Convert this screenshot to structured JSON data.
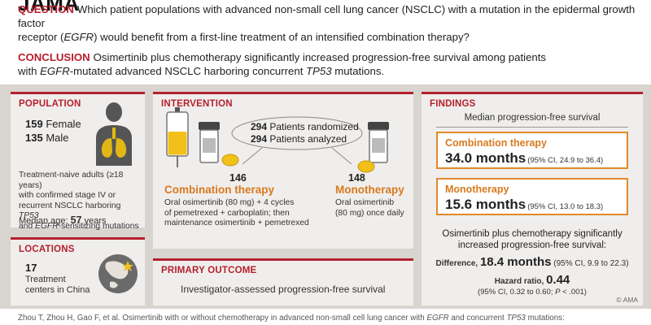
{
  "brand": {
    "logo": "JAMA"
  },
  "question": {
    "tag": "QUESTION",
    "text_1": "Which patient populations with advanced non-small cell lung cancer (NSCLC) with a mutation in the epidermal growth factor",
    "text_2a": "receptor (",
    "text_2b": "EGFR",
    "text_2c": ") would benefit from a first-line treatment of an intensified combination therapy?"
  },
  "conclusion": {
    "tag": "CONCLUSION",
    "text_1": "Osimertinib plus chemotherapy significantly increased progression-free survival among patients",
    "text_2a": "with ",
    "text_2b": "EGFR",
    "text_2c": "-mutated advanced NSCLC harboring concurrent ",
    "text_2d": "TP53",
    "text_2e": " mutations."
  },
  "population": {
    "title": "POPULATION",
    "female": "159",
    "female_label": "Female",
    "male": "135",
    "male_label": "Male",
    "desc_1": "Treatment-naive adults (≥18 years)",
    "desc_2": "with confirmed stage IV or",
    "desc_3a": "recurrent NSCLC harboring ",
    "desc_3b": "TP53",
    "desc_4a": "and ",
    "desc_4b": "EGFR",
    "desc_4c": "-sensitizing mutations",
    "age_label": "Median age:",
    "age_value": "57",
    "age_unit": "years"
  },
  "locations": {
    "title": "LOCATIONS",
    "count": "17",
    "line_1": "Treatment",
    "line_2": "centers in China"
  },
  "intervention": {
    "title": "INTERVENTION",
    "randomized": "294",
    "randomized_label": "Patients randomized",
    "analyzed": "294",
    "analyzed_label": "Patients analyzed",
    "arm1_n": "146",
    "arm1_name": "Combination therapy",
    "arm1_desc_1": "Oral osimertinib (80 mg) + 4 cycles",
    "arm1_desc_2": "of pemetrexed + carboplatin; then",
    "arm1_desc_3": "maintenance osimertinib + pemetrexed",
    "arm2_n": "148",
    "arm2_name": "Monotherapy",
    "arm2_desc_1": "Oral osimertinib",
    "arm2_desc_2": "(80 mg) once daily"
  },
  "primary_outcome": {
    "title": "PRIMARY OUTCOME",
    "text": "Investigator-assessed progression-free survival"
  },
  "findings": {
    "title": "FINDINGS",
    "subtitle": "Median progression-free survival",
    "combo_label": "Combination therapy",
    "combo_value": "34.0 months",
    "combo_ci": "(95% CI, 24.9 to 36.4)",
    "mono_label": "Monotherapy",
    "mono_value": "15.6 months",
    "mono_ci": "(95% CI, 13.0 to 18.3)",
    "summary_1": "Osimertinib plus chemotherapy significantly",
    "summary_2": "increased progression-free survival:",
    "diff_label": "Difference,",
    "diff_value": "18.4 months",
    "diff_ci": "(95% CI, 9.9 to 22.3)",
    "hr_label": "Hazard ratio,",
    "hr_value": "0.44",
    "hr_ci_a": "(95% CI, 0.32 to 0.60; ",
    "hr_ci_p": "P",
    "hr_ci_b": " < .001)",
    "copyright": "© AMA"
  },
  "citation": {
    "text_a": "Zhou T, Zhou H, Gao F, et al. Osimertinib with or without chemotherapy in advanced non-small cell lung cancer with ",
    "text_b": "EGFR",
    "text_c": " and concurrent ",
    "text_d": "TP53",
    "text_e": " mutations:"
  },
  "colors": {
    "accent_red": "#b5202e",
    "accent_orange": "#d9791f",
    "panel_bg": "#f0eeec",
    "frame_bg": "#d8d4cf"
  }
}
